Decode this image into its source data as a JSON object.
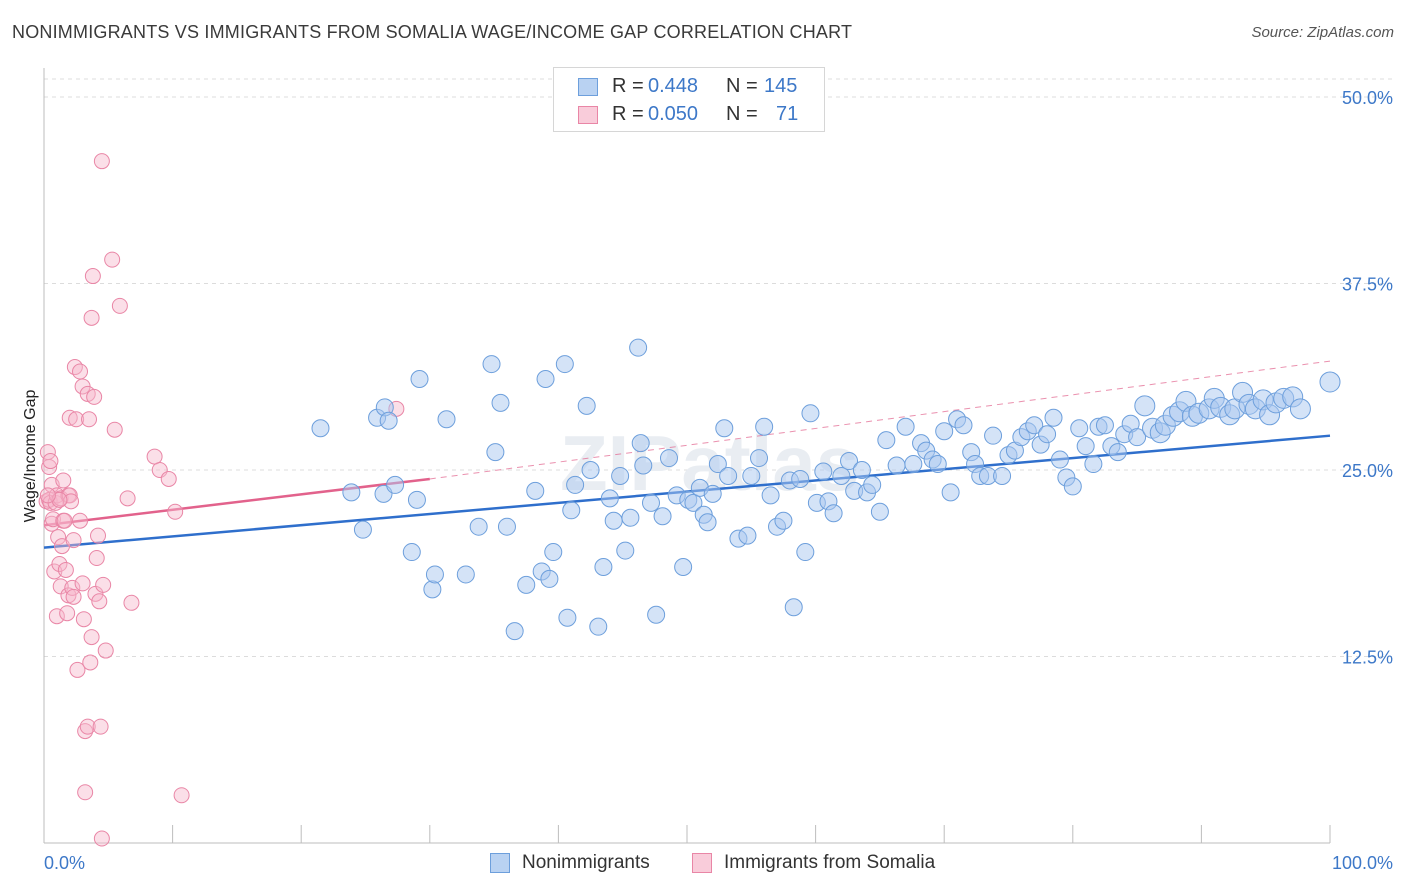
{
  "title": "NONIMMIGRANTS VS IMMIGRANTS FROM SOMALIA WAGE/INCOME GAP CORRELATION CHART",
  "source": "Source: ZipAtlas.com",
  "watermark": "ZIPatlas",
  "legend_top": {
    "rows": [
      {
        "r_label": "R =",
        "r_value": "0.448",
        "n_label": "N =",
        "n_value": "145",
        "color": "#a9c8ef"
      },
      {
        "r_label": "R =",
        "r_value": "0.050",
        "n_label": "N =",
        "n_value": "71",
        "color": "#f6b8cb"
      }
    ]
  },
  "legend_bottom": {
    "items": [
      {
        "label": "Nonimmigrants",
        "color": "#a9c8ef"
      },
      {
        "label": "Immigrants from Somalia",
        "color": "#f6b8cb"
      }
    ]
  },
  "colors": {
    "blue_fill": "#a9c8ef",
    "blue_stroke": "#6d9fdc",
    "blue_line": "#2f6fcc",
    "pink_fill": "#f6b8cb",
    "pink_stroke": "#e986a6",
    "pink_line": "#e2628c",
    "tick_text": "#3d78c8",
    "grid": "#dcdcdc"
  },
  "chart_data": {
    "type": "scatter",
    "title": "NONIMMIGRANTS VS IMMIGRANTS FROM SOMALIA WAGE/INCOME GAP CORRELATION CHART",
    "xlabel": "",
    "ylabel": "Wage/Income Gap",
    "xlim": [
      0,
      100
    ],
    "ylim": [
      0,
      50
    ],
    "x_tick_labels": [
      "0.0%",
      "100.0%"
    ],
    "y_ticks": [
      12.5,
      25.0,
      37.5,
      50.0
    ],
    "y_tick_labels": [
      "12.5%",
      "25.0%",
      "37.5%",
      "50.0%"
    ],
    "grid": "horizontal dashed",
    "legend_position": "top-center",
    "series": [
      {
        "name": "Nonimmigrants",
        "r": 0.448,
        "n": 145,
        "trend": {
          "x": [
            0,
            100
          ],
          "y": [
            19.8,
            27.3
          ]
        },
        "points": [
          [
            21.5,
            27.8
          ],
          [
            23.9,
            23.5
          ],
          [
            24.8,
            21
          ],
          [
            25.9,
            28.5
          ],
          [
            26.4,
            23.4
          ],
          [
            26.5,
            29.2
          ],
          [
            26.8,
            28.3
          ],
          [
            27.3,
            24
          ],
          [
            28.6,
            19.5
          ],
          [
            29,
            23
          ],
          [
            29.2,
            31.1
          ],
          [
            30.2,
            17
          ],
          [
            30.4,
            18
          ],
          [
            31.3,
            28.4
          ],
          [
            32.8,
            18
          ],
          [
            33.8,
            21.2
          ],
          [
            34.8,
            32.1
          ],
          [
            35.1,
            26.2
          ],
          [
            35.5,
            29.5
          ],
          [
            36,
            21.2
          ],
          [
            36.6,
            14.2
          ],
          [
            37.5,
            17.3
          ],
          [
            38.2,
            23.6
          ],
          [
            38.7,
            18.2
          ],
          [
            39,
            31.1
          ],
          [
            39.3,
            17.7
          ],
          [
            39.6,
            19.5
          ],
          [
            40.5,
            32.1
          ],
          [
            40.7,
            15.1
          ],
          [
            41,
            22.3
          ],
          [
            41.3,
            24
          ],
          [
            42.2,
            29.3
          ],
          [
            42.5,
            25
          ],
          [
            43.1,
            14.5
          ],
          [
            43.5,
            18.5
          ],
          [
            44,
            23.1
          ],
          [
            44.3,
            21.6
          ],
          [
            44.8,
            24.6
          ],
          [
            45.2,
            19.6
          ],
          [
            45.6,
            21.8
          ],
          [
            46.2,
            33.2
          ],
          [
            46.4,
            26.8
          ],
          [
            46.6,
            25.3
          ],
          [
            47.2,
            22.8
          ],
          [
            47.6,
            15.3
          ],
          [
            48.1,
            21.9
          ],
          [
            48.6,
            25.8
          ],
          [
            49.2,
            23.3
          ],
          [
            49.7,
            18.5
          ],
          [
            50.1,
            23
          ],
          [
            50.5,
            22.8
          ],
          [
            51,
            23.8
          ],
          [
            51.3,
            22
          ],
          [
            51.6,
            21.5
          ],
          [
            52,
            23.4
          ],
          [
            52.4,
            25.4
          ],
          [
            52.9,
            27.8
          ],
          [
            53.2,
            24.6
          ],
          [
            54,
            20.4
          ],
          [
            54.7,
            20.6
          ],
          [
            55,
            24.6
          ],
          [
            55.6,
            25.8
          ],
          [
            56,
            27.9
          ],
          [
            56.5,
            23.3
          ],
          [
            57,
            21.2
          ],
          [
            57.5,
            21.6
          ],
          [
            58,
            24.3
          ],
          [
            58.3,
            15.8
          ],
          [
            58.8,
            24.4
          ],
          [
            59.2,
            19.5
          ],
          [
            59.6,
            28.8
          ],
          [
            60.1,
            22.8
          ],
          [
            60.6,
            24.9
          ],
          [
            61,
            22.9
          ],
          [
            61.4,
            22.1
          ],
          [
            62,
            24.6
          ],
          [
            62.6,
            25.6
          ],
          [
            63,
            23.6
          ],
          [
            63.6,
            25
          ],
          [
            64,
            23.5
          ],
          [
            64.4,
            24
          ],
          [
            65,
            22.2
          ],
          [
            65.5,
            27
          ],
          [
            66.3,
            25.3
          ],
          [
            67,
            27.9
          ],
          [
            67.6,
            25.4
          ],
          [
            68.2,
            26.8
          ],
          [
            68.6,
            26.3
          ],
          [
            69.1,
            25.7
          ],
          [
            69.5,
            25.4
          ],
          [
            70,
            27.6
          ],
          [
            70.5,
            23.5
          ],
          [
            71,
            28.4
          ],
          [
            71.5,
            28
          ],
          [
            72.1,
            26.2
          ],
          [
            72.4,
            25.4
          ],
          [
            72.8,
            24.6
          ],
          [
            73.4,
            24.6
          ],
          [
            73.8,
            27.3
          ],
          [
            74.5,
            24.6
          ],
          [
            75,
            26
          ],
          [
            75.5,
            26.3
          ],
          [
            76,
            27.2
          ],
          [
            76.5,
            27.6
          ],
          [
            77,
            28
          ],
          [
            77.5,
            26.7
          ],
          [
            78,
            27.4
          ],
          [
            78.5,
            28.5
          ],
          [
            79,
            25.7
          ],
          [
            79.5,
            24.5
          ],
          [
            80,
            23.9
          ],
          [
            80.5,
            27.8
          ],
          [
            81,
            26.6
          ],
          [
            81.6,
            25.4
          ],
          [
            82,
            27.9
          ],
          [
            82.5,
            28
          ],
          [
            83,
            26.6
          ],
          [
            83.5,
            26.2
          ],
          [
            84,
            27.4
          ],
          [
            84.5,
            28.1
          ],
          [
            85,
            27.2
          ],
          [
            85.6,
            29.3
          ],
          [
            86.2,
            27.8
          ],
          [
            86.8,
            27.5
          ],
          [
            87.2,
            28
          ],
          [
            87.8,
            28.6
          ],
          [
            88.3,
            28.9
          ],
          [
            88.8,
            29.6
          ],
          [
            89.3,
            28.6
          ],
          [
            89.8,
            28.8
          ],
          [
            90.6,
            29.1
          ],
          [
            91,
            29.8
          ],
          [
            91.5,
            29.2
          ],
          [
            92.2,
            28.7
          ],
          [
            92.6,
            29.1
          ],
          [
            93.2,
            30.2
          ],
          [
            93.7,
            29.4
          ],
          [
            94.2,
            29.1
          ],
          [
            94.8,
            29.7
          ],
          [
            95.3,
            28.7
          ],
          [
            95.8,
            29.5
          ],
          [
            96.4,
            29.8
          ],
          [
            97.1,
            29.9
          ],
          [
            97.7,
            29.1
          ],
          [
            100,
            30.9
          ]
        ]
      },
      {
        "name": "Immigrants from Somalia",
        "r": 0.05,
        "n": 71,
        "trend": {
          "x": [
            0,
            30
          ],
          "y": [
            21.3,
            24.4
          ]
        },
        "trend_extension": {
          "x": [
            30,
            100
          ],
          "y": [
            24.4,
            32.3
          ]
        },
        "points": [
          [
            0.2,
            22.9
          ],
          [
            0.3,
            26.2
          ],
          [
            0.4,
            23
          ],
          [
            0.4,
            25.2
          ],
          [
            0.5,
            25.6
          ],
          [
            0.5,
            22.8
          ],
          [
            0.6,
            24
          ],
          [
            0.6,
            21.4
          ],
          [
            0.7,
            21.7
          ],
          [
            0.8,
            18.2
          ],
          [
            0.9,
            22.8
          ],
          [
            1,
            23.3
          ],
          [
            1,
            15.2
          ],
          [
            1.1,
            20.5
          ],
          [
            1.2,
            18.7
          ],
          [
            1.3,
            23.1
          ],
          [
            1.3,
            17.2
          ],
          [
            1.4,
            19.9
          ],
          [
            1.5,
            24.3
          ],
          [
            1.5,
            21.6
          ],
          [
            1.6,
            21.6
          ],
          [
            1.7,
            18.3
          ],
          [
            1.8,
            15.4
          ],
          [
            1.9,
            16.6
          ],
          [
            1.9,
            23.3
          ],
          [
            2,
            28.5
          ],
          [
            2,
            23.3
          ],
          [
            2.1,
            22.9
          ],
          [
            2.2,
            17.1
          ],
          [
            2.3,
            16.5
          ],
          [
            2.3,
            20.3
          ],
          [
            2.4,
            31.9
          ],
          [
            2.5,
            28.4
          ],
          [
            2.6,
            11.6
          ],
          [
            2.8,
            21.6
          ],
          [
            2.8,
            31.6
          ],
          [
            3,
            30.6
          ],
          [
            3,
            17.4
          ],
          [
            3.1,
            15
          ],
          [
            3.2,
            7.5
          ],
          [
            3.2,
            3.4
          ],
          [
            3.4,
            30.1
          ],
          [
            3.4,
            7.8
          ],
          [
            3.5,
            28.4
          ],
          [
            3.6,
            12.1
          ],
          [
            3.7,
            13.8
          ],
          [
            3.7,
            35.2
          ],
          [
            3.8,
            38
          ],
          [
            3.9,
            29.9
          ],
          [
            4,
            16.7
          ],
          [
            4.1,
            19.1
          ],
          [
            4.2,
            20.6
          ],
          [
            4.3,
            16.2
          ],
          [
            4.4,
            7.8
          ],
          [
            4.5,
            0.3
          ],
          [
            4.5,
            45.7
          ],
          [
            4.6,
            17.3
          ],
          [
            4.8,
            12.9
          ],
          [
            5.3,
            39.1
          ],
          [
            5.5,
            27.7
          ],
          [
            5.9,
            36
          ],
          [
            6.5,
            23.1
          ],
          [
            6.8,
            16.1
          ],
          [
            8.6,
            25.9
          ],
          [
            9,
            25
          ],
          [
            9.7,
            24.4
          ],
          [
            10.2,
            22.2
          ],
          [
            10.7,
            3.2
          ],
          [
            27.4,
            29.1
          ],
          [
            1.2,
            23
          ],
          [
            0.3,
            23.3
          ]
        ]
      }
    ]
  }
}
